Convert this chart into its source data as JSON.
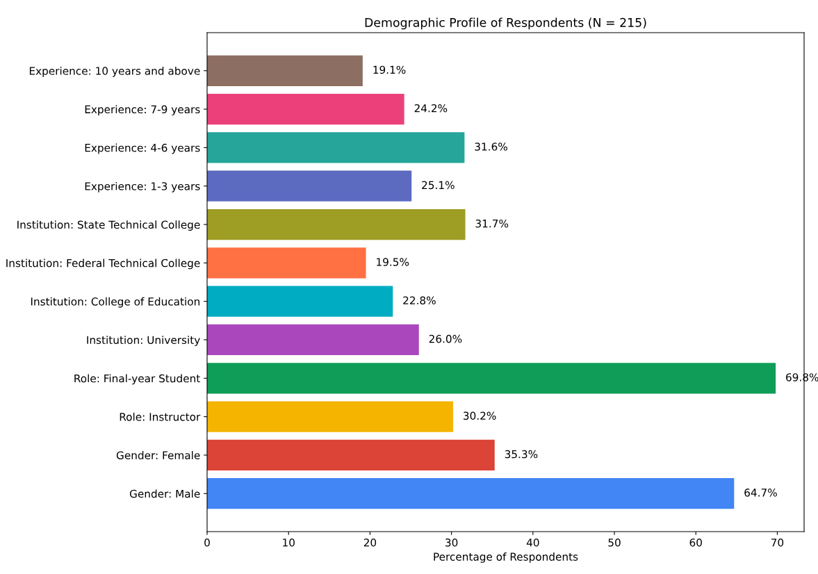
{
  "chart_data": {
    "type": "bar",
    "orientation": "horizontal",
    "title": "Demographic Profile of Respondents (N = 215)",
    "xlabel": "Percentage of Respondents",
    "categories": [
      "Experience: 10 years and above",
      "Experience: 7-9 years",
      "Experience: 4-6 years",
      "Experience: 1-3 years",
      "Institution: State Technical College",
      "Institution: Federal Technical College",
      "Institution: College of Education",
      "Institution: University",
      "Role: Final-year Student",
      "Role: Instructor",
      "Gender: Female",
      "Gender: Male"
    ],
    "values": [
      19.1,
      24.2,
      31.6,
      25.1,
      31.7,
      19.5,
      22.8,
      26.0,
      69.8,
      30.2,
      35.3,
      64.7
    ],
    "value_labels": [
      "19.1%",
      "24.2%",
      "31.6%",
      "25.1%",
      "31.7%",
      "19.5%",
      "22.8%",
      "26.0%",
      "69.8%",
      "30.2%",
      "35.3%",
      "64.7%"
    ],
    "colors": [
      "#8d6e63",
      "#ec407a",
      "#26a69a",
      "#5c6bc0",
      "#9e9d24",
      "#ff7043",
      "#00acc1",
      "#ab47bc",
      "#0f9d58",
      "#f4b400",
      "#db4437",
      "#4285f4"
    ],
    "xlim": [
      0,
      73.29
    ],
    "xticks": [
      0,
      10,
      20,
      30,
      40,
      50,
      60,
      70
    ],
    "grid": false,
    "legend": false
  }
}
